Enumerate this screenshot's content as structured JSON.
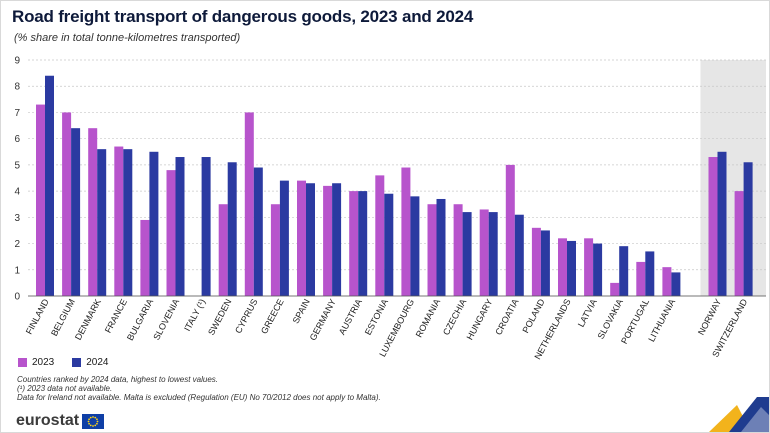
{
  "title": "Road freight transport of dangerous goods, 2023 and 2024",
  "subtitle": "(% share in total tonne-kilometres transported)",
  "colors": {
    "series_2023": "#b754cc",
    "series_2024": "#2b3aa1",
    "highlight_bg": "#e6e6e6",
    "grid": "#c8c8c8"
  },
  "chart_data": {
    "type": "bar",
    "categories": [
      "FINLAND",
      "BELGIUM",
      "DENMARK",
      "FRANCE",
      "BULGARIA",
      "SLOVENIA",
      "ITALY (¹)",
      "SWEDEN",
      "CYPRUS",
      "GREECE",
      "SPAIN",
      "GERMANY",
      "AUSTRIA",
      "ESTONIA",
      "LUXEMBOURG",
      "ROMANIA",
      "CZECHIA",
      "HUNGARY",
      "CROATIA",
      "POLAND",
      "NETHERLANDS",
      "LATVIA",
      "SLOVAKIA",
      "PORTUGAL",
      "LITHUANIA",
      "NORWAY",
      "SWITZERLAND"
    ],
    "series": [
      {
        "name": "2023",
        "values": [
          7.3,
          7.0,
          6.4,
          5.7,
          2.9,
          4.8,
          null,
          3.5,
          7.0,
          3.5,
          4.4,
          4.2,
          4.0,
          4.6,
          4.9,
          3.5,
          3.5,
          3.3,
          5.0,
          2.6,
          2.2,
          2.2,
          0.5,
          1.3,
          1.1,
          5.3,
          4.0
        ]
      },
      {
        "name": "2024",
        "values": [
          8.4,
          6.4,
          5.6,
          5.6,
          5.5,
          5.3,
          5.3,
          5.1,
          4.9,
          4.4,
          4.3,
          4.3,
          4.0,
          3.9,
          3.8,
          3.7,
          3.2,
          3.2,
          3.1,
          2.5,
          2.1,
          2.0,
          1.9,
          1.7,
          0.9,
          5.5,
          5.1
        ]
      }
    ],
    "highlighted_categories": [
      "NORWAY",
      "SWITZERLAND"
    ],
    "ylim": [
      0,
      9
    ],
    "yticks": [
      "0",
      "1",
      "2",
      "3",
      "4",
      "5",
      "6",
      "7",
      "8",
      "9"
    ],
    "grid": true,
    "legend_position": "bottom-left"
  },
  "legend": {
    "label_2023": "2023",
    "label_2024": "2024"
  },
  "notes": [
    "Countries ranked by 2024 data, highest to lowest values.",
    "(¹) 2023 data not available.",
    "Data for Ireland not available. Malta is excluded (Regulation (EU) No 70/2012 does not apply to Malta)."
  ],
  "logo_text": "eurostat"
}
